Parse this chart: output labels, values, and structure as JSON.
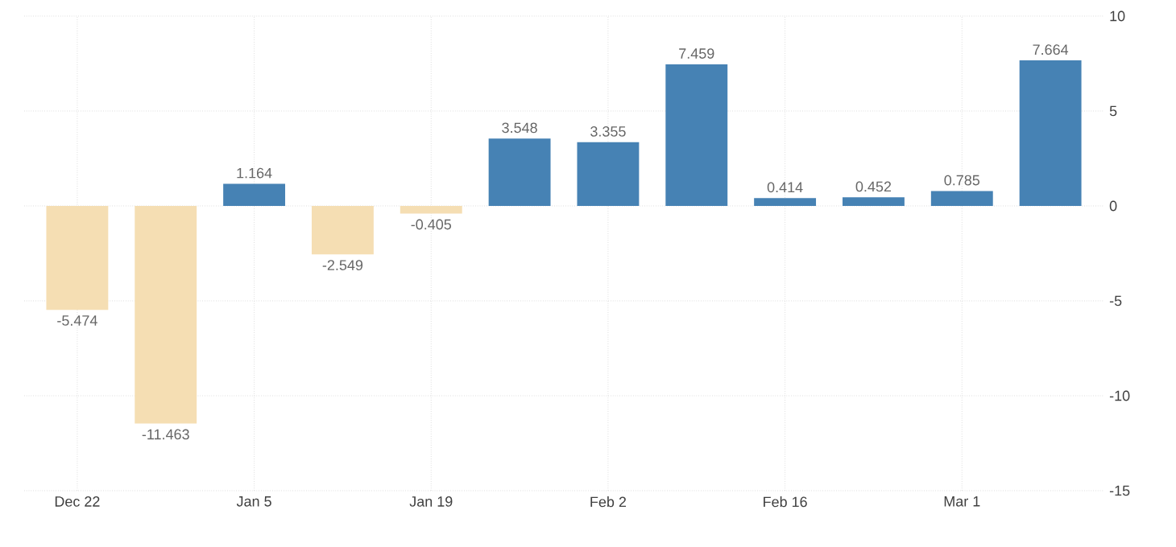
{
  "chart_data": {
    "type": "bar",
    "categories": [
      "Dec 22",
      null,
      "Jan 5",
      null,
      "Jan 19",
      null,
      "Feb 2",
      null,
      "Feb 16",
      null,
      "Mar 1",
      null
    ],
    "values": [
      -5.474,
      -11.463,
      1.164,
      -2.549,
      -0.405,
      3.548,
      3.355,
      7.459,
      0.414,
      0.452,
      0.785,
      7.664
    ],
    "colors": [
      "#f5deb3",
      "#f5deb3",
      "#4682b4",
      "#f5deb3",
      "#f5deb3",
      "#4682b4",
      "#4682b4",
      "#4682b4",
      "#4682b4",
      "#4682b4",
      "#4682b4",
      "#4682b4"
    ],
    "ylim": [
      -15,
      10
    ],
    "yticks": [
      -15,
      -10,
      -5,
      0,
      5,
      10
    ],
    "grid": true,
    "data_labels": true
  }
}
